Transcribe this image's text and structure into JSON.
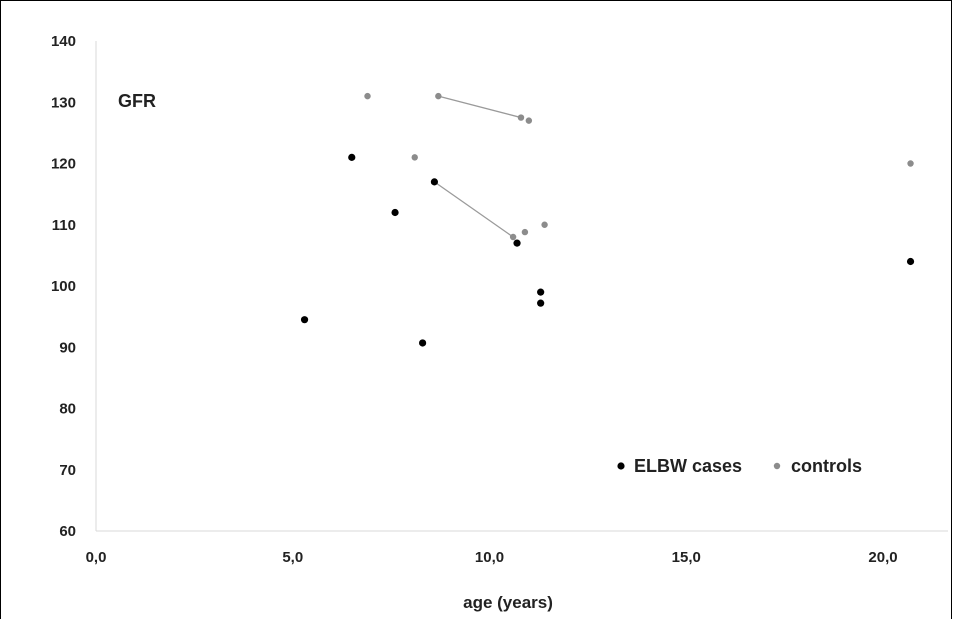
{
  "chart_data": {
    "type": "scatter",
    "title": "",
    "xlabel": "age (years)",
    "ylabel": "",
    "annotation": "GFR",
    "xlim": [
      0,
      22
    ],
    "ylim": [
      60,
      140
    ],
    "x_ticks": [
      0,
      5,
      10,
      15,
      20
    ],
    "x_tick_labels": [
      "0,0",
      "5,0",
      "10,0",
      "15,0",
      "20,0"
    ],
    "y_ticks": [
      60,
      70,
      80,
      90,
      100,
      110,
      120,
      130,
      140
    ],
    "y_tick_labels": [
      "60",
      "70",
      "80",
      "90",
      "100",
      "110",
      "120",
      "130",
      "140"
    ],
    "grid": false,
    "legend_position": "bottom-right",
    "series": [
      {
        "name": "ELBW cases",
        "color": "#000000",
        "points": [
          {
            "x": 5.3,
            "y": 94.5
          },
          {
            "x": 6.5,
            "y": 121
          },
          {
            "x": 7.6,
            "y": 112
          },
          {
            "x": 8.3,
            "y": 90.7
          },
          {
            "x": 8.6,
            "y": 117
          },
          {
            "x": 10.7,
            "y": 107
          },
          {
            "x": 11.3,
            "y": 99
          },
          {
            "x": 11.3,
            "y": 97.2
          },
          {
            "x": 20.7,
            "y": 104
          }
        ]
      },
      {
        "name": "controls",
        "color": "#8c8c8c",
        "points": [
          {
            "x": 6.9,
            "y": 131
          },
          {
            "x": 8.1,
            "y": 121
          },
          {
            "x": 8.7,
            "y": 131
          },
          {
            "x": 10.6,
            "y": 108
          },
          {
            "x": 10.9,
            "y": 108.8
          },
          {
            "x": 10.8,
            "y": 127.5
          },
          {
            "x": 11.0,
            "y": 127
          },
          {
            "x": 11.4,
            "y": 110
          },
          {
            "x": 20.7,
            "y": 120
          }
        ]
      }
    ],
    "connectors": [
      {
        "from": {
          "x": 8.7,
          "y": 131
        },
        "to": {
          "x": 10.8,
          "y": 127.5
        },
        "color": "#9a9a9a"
      },
      {
        "from": {
          "x": 8.6,
          "y": 117
        },
        "to": {
          "x": 10.6,
          "y": 108
        },
        "color": "#9a9a9a"
      }
    ]
  }
}
